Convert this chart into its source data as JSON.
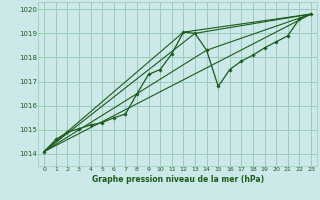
{
  "title": "Graphe pression niveau de la mer (hPa)",
  "bg_color": "#cce8e8",
  "grid_color": "#99ccbb",
  "line_color": "#1a5c1a",
  "text_color": "#1a5c1a",
  "xlim": [
    -0.5,
    23.5
  ],
  "ylim": [
    1013.5,
    1020.3
  ],
  "yticks": [
    1014,
    1015,
    1016,
    1017,
    1018,
    1019,
    1020
  ],
  "xticks": [
    0,
    1,
    2,
    3,
    4,
    5,
    6,
    7,
    8,
    9,
    10,
    11,
    12,
    13,
    14,
    15,
    16,
    17,
    18,
    19,
    20,
    21,
    22,
    23
  ],
  "series1_x": [
    0,
    1,
    2,
    3,
    4,
    5,
    6,
    7,
    8,
    9,
    10,
    11,
    12,
    13,
    14,
    15,
    16,
    17,
    18,
    19,
    20,
    21,
    22,
    23
  ],
  "series1_y": [
    1014.1,
    1014.6,
    1014.9,
    1015.05,
    1015.2,
    1015.3,
    1015.5,
    1015.65,
    1016.5,
    1017.3,
    1017.5,
    1018.15,
    1019.05,
    1019.0,
    1018.3,
    1016.8,
    1017.5,
    1017.85,
    1018.1,
    1018.4,
    1018.65,
    1018.9,
    1019.6,
    1019.8
  ],
  "series2_x": [
    0,
    23
  ],
  "series2_y": [
    1014.1,
    1019.8
  ],
  "series3_x": [
    0,
    12,
    23
  ],
  "series3_y": [
    1014.1,
    1019.05,
    1019.8
  ],
  "series4_x": [
    0,
    13,
    23
  ],
  "series4_y": [
    1014.1,
    1019.0,
    1019.8
  ],
  "series5_x": [
    0,
    14,
    23
  ],
  "series5_y": [
    1014.1,
    1018.3,
    1019.8
  ]
}
